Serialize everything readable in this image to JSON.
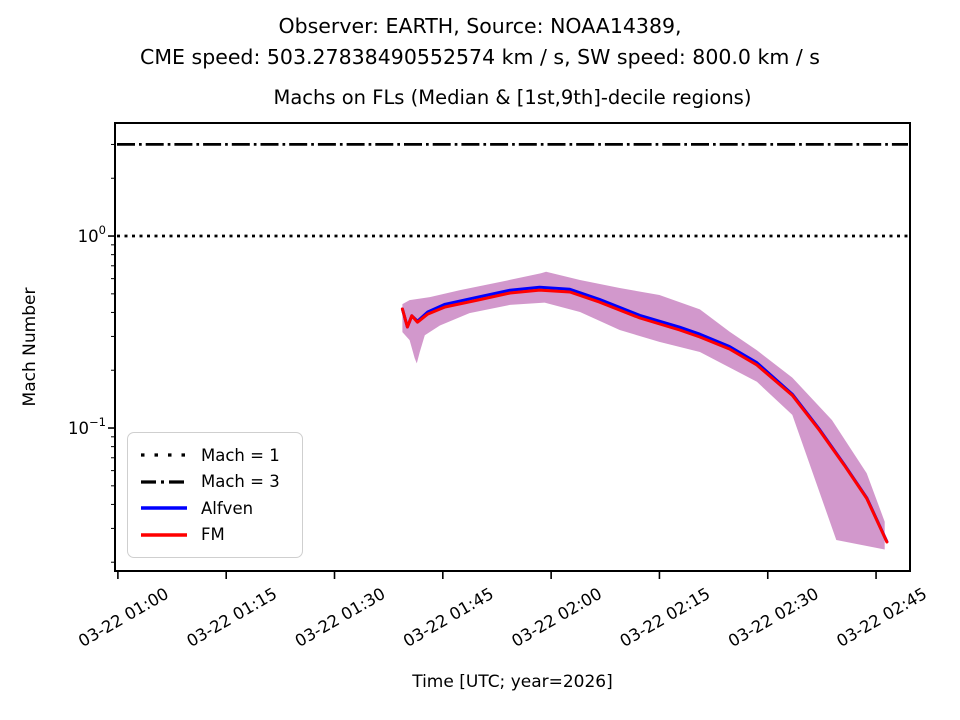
{
  "figure": {
    "suptitle_line1": "Observer: EARTH, Source: NOAA14389,",
    "suptitle_line2": "CME speed: 503.27838490552574 km / s, SW speed: 800.0 km / s"
  },
  "chart_data": {
    "type": "line",
    "title": "Machs on FLs (Median & [1st,9th]-decile regions)",
    "xlabel": "Time [UTC; year=2026]",
    "ylabel": "Mach Number",
    "yscale": "log",
    "grid": false,
    "ylim": [
      0.018,
      3.88
    ],
    "xlim_minutes": [
      59.6,
      169.7
    ],
    "x_ticks": [
      {
        "minute": 60,
        "label": "03-22 01:00"
      },
      {
        "minute": 75,
        "label": "03-22 01:15"
      },
      {
        "minute": 90,
        "label": "03-22 01:30"
      },
      {
        "minute": 105,
        "label": "03-22 01:45"
      },
      {
        "minute": 120,
        "label": "03-22 02:00"
      },
      {
        "minute": 135,
        "label": "03-22 02:15"
      },
      {
        "minute": 150,
        "label": "03-22 02:30"
      },
      {
        "minute": 165,
        "label": "03-22 02:45"
      }
    ],
    "y_major_ticks": [
      {
        "value": 1,
        "base": "10",
        "exp": "0"
      },
      {
        "value": 0.1,
        "base": "10",
        "exp": "−1"
      }
    ],
    "y_minor_ticks": [
      3,
      2,
      0.9,
      0.8,
      0.7,
      0.6,
      0.5,
      0.4,
      0.3,
      0.2,
      0.09,
      0.08,
      0.07,
      0.06,
      0.05,
      0.04,
      0.03,
      0.02
    ],
    "reference_lines": [
      {
        "name": "Mach = 1",
        "value": 1,
        "style": "dotted",
        "color": "#000000"
      },
      {
        "name": "Mach = 3",
        "value": 3,
        "style": "dashdot",
        "color": "#000000"
      }
    ],
    "series": [
      {
        "name": "Alfven",
        "color": "#0000ff",
        "points": [
          [
            99.4,
            0.417
          ],
          [
            100.1,
            0.336
          ],
          [
            100.7,
            0.384
          ],
          [
            101.5,
            0.36
          ],
          [
            102.9,
            0.402
          ],
          [
            105.3,
            0.441
          ],
          [
            109.8,
            0.48
          ],
          [
            114.3,
            0.522
          ],
          [
            118.4,
            0.541
          ],
          [
            122.6,
            0.528
          ],
          [
            126.7,
            0.468
          ],
          [
            132.3,
            0.386
          ],
          [
            137.8,
            0.335
          ],
          [
            140.6,
            0.308
          ],
          [
            144.7,
            0.266
          ],
          [
            148.5,
            0.219
          ],
          [
            153.4,
            0.15
          ],
          [
            157.2,
            0.098
          ],
          [
            160.6,
            0.0645
          ],
          [
            163.7,
            0.0433
          ],
          [
            166.5,
            0.0256
          ]
        ]
      },
      {
        "name": "FM",
        "color": "#ff0000",
        "points": [
          [
            99.4,
            0.417
          ],
          [
            100.1,
            0.336
          ],
          [
            100.7,
            0.384
          ],
          [
            101.5,
            0.356
          ],
          [
            102.9,
            0.392
          ],
          [
            105.3,
            0.427
          ],
          [
            109.8,
            0.464
          ],
          [
            114.3,
            0.505
          ],
          [
            118.4,
            0.523
          ],
          [
            122.6,
            0.511
          ],
          [
            126.7,
            0.453
          ],
          [
            132.3,
            0.374
          ],
          [
            137.8,
            0.324
          ],
          [
            140.6,
            0.298
          ],
          [
            144.7,
            0.258
          ],
          [
            148.5,
            0.213
          ],
          [
            153.4,
            0.148
          ],
          [
            157.2,
            0.097
          ],
          [
            160.6,
            0.064
          ],
          [
            163.7,
            0.043
          ],
          [
            166.5,
            0.0255
          ]
        ]
      }
    ],
    "band": {
      "name": "[1st,9th]-decile region",
      "color": "#cd8dc6",
      "upper": [
        [
          99.4,
          0.442
        ],
        [
          100.4,
          0.464
        ],
        [
          103.2,
          0.481
        ],
        [
          107.4,
          0.523
        ],
        [
          112.9,
          0.576
        ],
        [
          118.6,
          0.64
        ],
        [
          119.3,
          0.652
        ],
        [
          124.0,
          0.59
        ],
        [
          129.5,
          0.536
        ],
        [
          135.0,
          0.493
        ],
        [
          140.6,
          0.415
        ],
        [
          144.7,
          0.318
        ],
        [
          148.5,
          0.254
        ],
        [
          153.4,
          0.183
        ],
        [
          158.9,
          0.11
        ],
        [
          163.7,
          0.0582
        ],
        [
          166.2,
          0.0325
        ]
      ],
      "lower": [
        [
          99.4,
          0.316
        ],
        [
          100.4,
          0.287
        ],
        [
          101.1,
          0.231
        ],
        [
          101.4,
          0.217
        ],
        [
          101.8,
          0.248
        ],
        [
          102.5,
          0.304
        ],
        [
          104.6,
          0.342
        ],
        [
          108.7,
          0.397
        ],
        [
          114.3,
          0.438
        ],
        [
          119.1,
          0.45
        ],
        [
          124.0,
          0.402
        ],
        [
          129.5,
          0.324
        ],
        [
          135.0,
          0.281
        ],
        [
          140.6,
          0.249
        ],
        [
          148.5,
          0.174
        ],
        [
          153.4,
          0.117
        ],
        [
          159.5,
          0.0261
        ],
        [
          166.2,
          0.0233
        ]
      ]
    },
    "legend": {
      "position": "lower left",
      "items": [
        {
          "label": "Mach = 1",
          "style": "dotted",
          "color": "#000000"
        },
        {
          "label": "Mach = 3",
          "style": "dashdot",
          "color": "#000000"
        },
        {
          "label": "Alfven",
          "style": "solid",
          "color": "#0000ff"
        },
        {
          "label": "FM",
          "style": "solid",
          "color": "#ff0000"
        }
      ]
    }
  }
}
